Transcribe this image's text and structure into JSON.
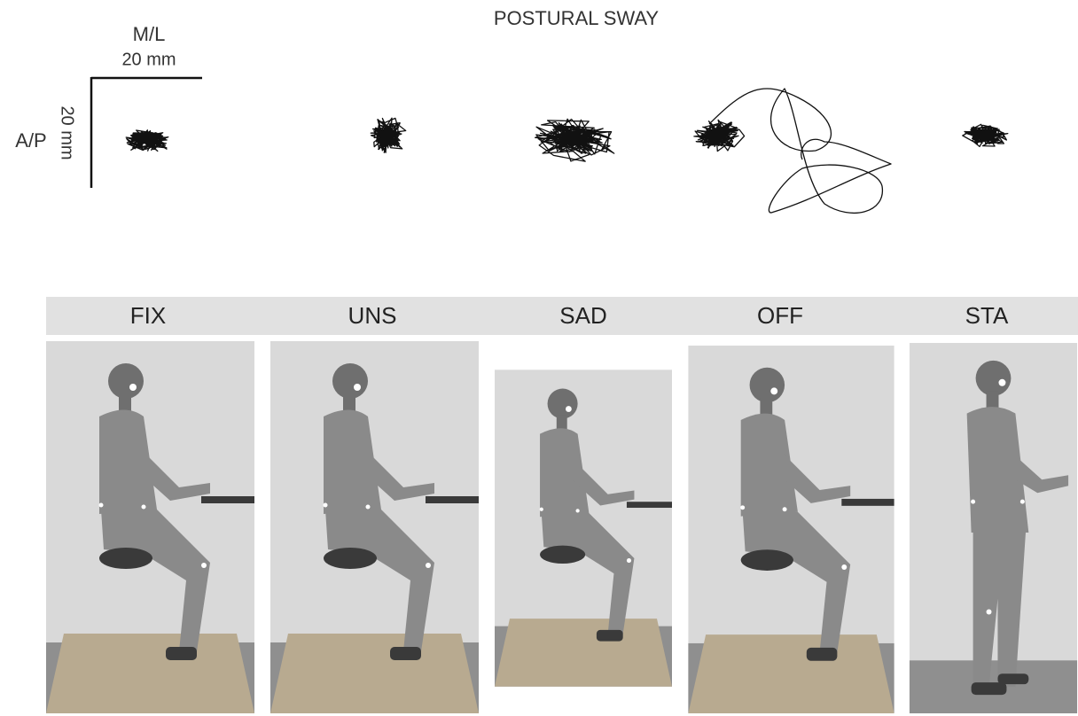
{
  "title": "POSTURAL SWAY",
  "scale_bar": {
    "horizontal_label": "M/L",
    "horizontal_length": "20 mm",
    "vertical_label": "A/P",
    "vertical_length": "20 mm"
  },
  "conditions": [
    "FIX",
    "UNS",
    "SAD",
    "OFF",
    "STA"
  ]
}
